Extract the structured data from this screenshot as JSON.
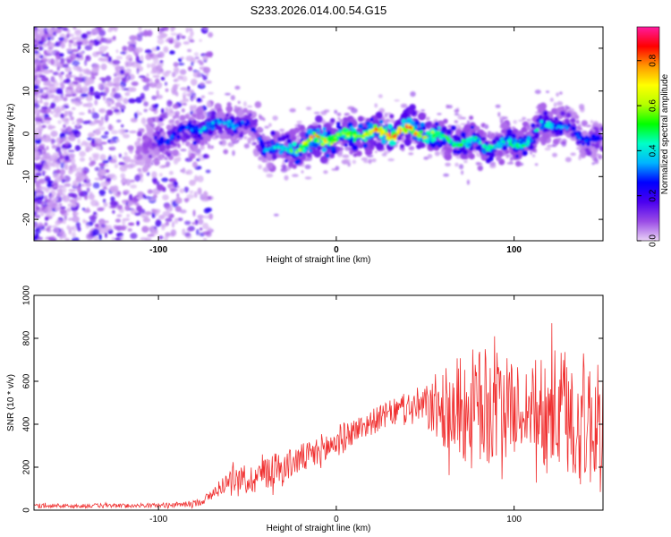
{
  "title": "S233.2026.014.00.54.G15",
  "chart_data": [
    {
      "type": "heatmap",
      "xlabel": "Height of straight line (km)",
      "ylabel": "Frequency (Hz)",
      "xlim": [
        -170,
        150
      ],
      "ylim": [
        -25,
        25
      ],
      "x_ticks": [
        -100,
        0,
        100
      ],
      "y_ticks": [
        -20,
        -10,
        0,
        10,
        20
      ],
      "colorbar": {
        "label": "Normalized spectral amplitude",
        "range": [
          0,
          0.95
        ],
        "ticks": [
          "0.0",
          "0.2",
          "0.4",
          "0.6",
          "0.8"
        ],
        "colors": [
          "#e9d2f6",
          "#9a4be6",
          "#4b00f0",
          "#0000ff",
          "#00b4ff",
          "#00ffc8",
          "#00ff00",
          "#b4ff00",
          "#ffff00",
          "#ff9600",
          "#ff0000",
          "#ff1aa0"
        ]
      },
      "ridge": {
        "x": [
          -110,
          -100,
          -90,
          -80,
          -70,
          -60,
          -50,
          -45,
          -40,
          -30,
          -20,
          -10,
          0,
          10,
          20,
          30,
          40,
          50,
          60,
          70,
          80,
          90,
          100,
          110,
          115,
          120,
          130,
          140,
          148
        ],
        "y": [
          -4,
          -2,
          0,
          1,
          2,
          3,
          2,
          0,
          -3,
          -4,
          -3,
          -1,
          -1,
          0,
          0,
          0,
          1,
          0,
          -1,
          -2,
          -2,
          -3,
          -2,
          -2,
          2,
          3,
          1,
          -1,
          -2
        ],
        "peak_amplitude": [
          0.15,
          0.3,
          0.3,
          0.35,
          0.4,
          0.35,
          0.3,
          0.25,
          0.35,
          0.45,
          0.6,
          0.8,
          0.6,
          0.6,
          0.7,
          0.85,
          0.9,
          0.7,
          0.5,
          0.5,
          0.45,
          0.45,
          0.5,
          0.45,
          0.4,
          0.4,
          0.3,
          0.3,
          0.25
        ]
      }
    },
    {
      "type": "line",
      "xlabel": "Height of straight line (km)",
      "ylabel": "SNR (10 * v/v)",
      "xlim": [
        -170,
        150
      ],
      "ylim": [
        0,
        1000
      ],
      "x_ticks": [
        -100,
        0,
        100
      ],
      "y_ticks": [
        0,
        200,
        400,
        600,
        800,
        1000
      ],
      "series": [
        {
          "color": "#f03030",
          "x": [
            -170,
            -160,
            -150,
            -140,
            -130,
            -120,
            -110,
            -100,
            -90,
            -80,
            -75,
            -70,
            -65,
            -60,
            -55,
            -50,
            -45,
            -40,
            -35,
            -30,
            -25,
            -20,
            -15,
            -10,
            -5,
            0,
            5,
            10,
            15,
            20,
            25,
            30,
            35,
            40,
            45,
            50,
            55,
            60,
            65,
            70,
            75,
            80,
            85,
            90,
            95,
            100,
            105,
            110,
            115,
            120,
            125,
            130,
            135,
            140,
            145,
            148
          ],
          "y": [
            20,
            22,
            18,
            20,
            22,
            20,
            22,
            22,
            25,
            30,
            45,
            70,
            110,
            140,
            150,
            130,
            160,
            180,
            200,
            190,
            220,
            240,
            250,
            270,
            290,
            320,
            340,
            370,
            390,
            410,
            430,
            450,
            460,
            470,
            480,
            480,
            480,
            470,
            470,
            480,
            460,
            470,
            470,
            480,
            480,
            470,
            480,
            470,
            470,
            460,
            450,
            440,
            430,
            420,
            400,
            390
          ],
          "spread": [
            10,
            10,
            10,
            10,
            10,
            10,
            10,
            10,
            12,
            15,
            20,
            30,
            40,
            50,
            60,
            60,
            80,
            100,
            80,
            80,
            70,
            70,
            70,
            80,
            80,
            80,
            70,
            60,
            60,
            60,
            60,
            60,
            70,
            80,
            90,
            100,
            150,
            180,
            220,
            260,
            280,
            300,
            280,
            260,
            240,
            200,
            200,
            200,
            280,
            300,
            300,
            320,
            320,
            320,
            300,
            280
          ]
        }
      ]
    }
  ]
}
